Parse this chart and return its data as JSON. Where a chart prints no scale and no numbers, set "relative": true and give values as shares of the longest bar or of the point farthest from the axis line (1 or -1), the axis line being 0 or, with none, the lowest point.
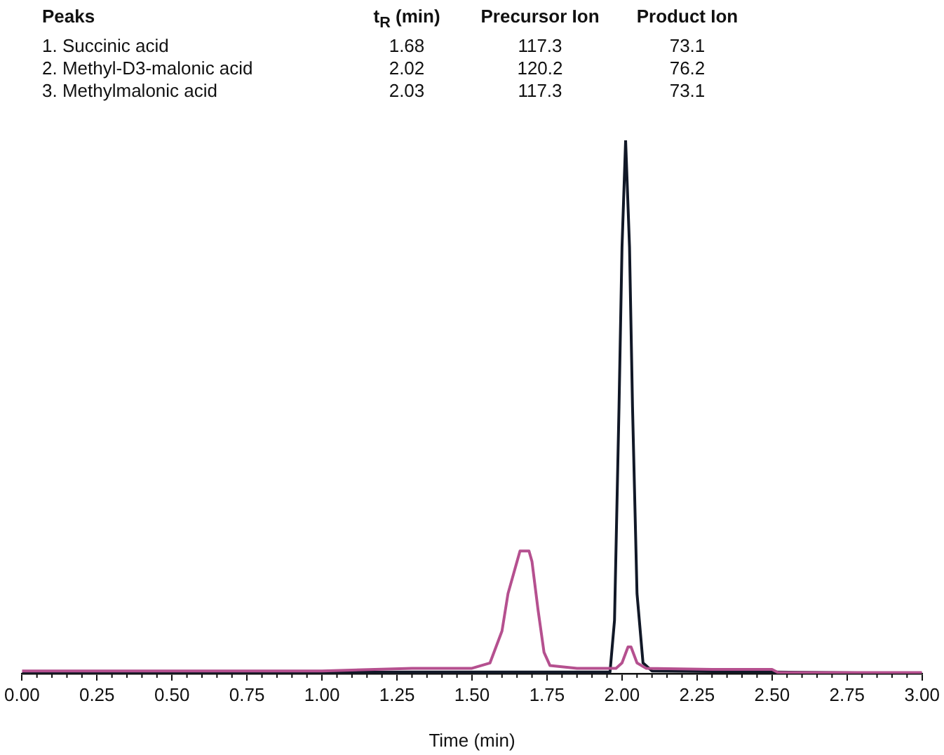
{
  "chart_data": {
    "type": "line",
    "relative": true,
    "xlabel": "Time (min)",
    "annotations": [
      "Peaks",
      "t$_{R}$ (min)",
      "Precursor Ion",
      "Product Ion",
      "1. Succinic acid",
      "1.68",
      "117.3",
      "73.1",
      "2. Methyl-D3-malonic acid",
      "2.02",
      "120.2",
      "76.2",
      "3. Methylmalonic acid",
      "2.03",
      "117.3",
      "73.1"
    ],
    "xlim": [
      0,
      3
    ],
    "xticks": [
      {
        "value": 0,
        "label": "0.00"
      },
      {
        "value": 0.25,
        "label": "0.25"
      },
      {
        "value": 0.5,
        "label": "0.50"
      },
      {
        "value": 0.75,
        "label": "0.75"
      },
      {
        "value": 1,
        "label": "1.00"
      },
      {
        "value": 1.25,
        "label": "1.25"
      },
      {
        "value": 1.5,
        "label": "1.50"
      },
      {
        "value": 1.75,
        "label": "1.75"
      },
      {
        "value": 2,
        "label": "2.00"
      },
      {
        "value": 2.25,
        "label": "2.25"
      },
      {
        "value": 2.5,
        "label": "2.50"
      },
      {
        "value": 2.75,
        "label": "2.75"
      },
      {
        "value": 3,
        "label": "3.00"
      }
    ],
    "grid": false,
    "legend": false,
    "marker": "none",
    "line_style": "solid",
    "series": [
      {
        "color": "#b5508f",
        "x": [
          0,
          0.5,
          1,
          1.3,
          1.5,
          1.56,
          1.6,
          1.62,
          1.65,
          1.66,
          1.69,
          1.7,
          1.72,
          1.74,
          1.76,
          1.85,
          1.98,
          2,
          2.02,
          2.03,
          2.05,
          2.08,
          2.3,
          2.5,
          2.52,
          3
        ],
        "values": [
          0.005,
          0.005,
          0.005,
          0.01,
          0.01,
          0.02,
          0.08,
          0.15,
          0.21,
          0.23,
          0.23,
          0.21,
          0.12,
          0.04,
          0.015,
          0.01,
          0.01,
          0.02,
          0.05,
          0.05,
          0.02,
          0.01,
          0.008,
          0.008,
          0.002,
          0.002
        ]
      },
      {
        "color": "#111827",
        "x": [
          0,
          1.3,
          1.96,
          1.975,
          1.99,
          2,
          2.012,
          2.025,
          2.035,
          2.05,
          2.07,
          2.1,
          2.5,
          3
        ],
        "values": [
          0,
          0.003,
          0.003,
          0.1,
          0.5,
          0.8,
          1,
          0.8,
          0.5,
          0.15,
          0.02,
          0.005,
          0.003,
          0
        ]
      }
    ]
  }
}
